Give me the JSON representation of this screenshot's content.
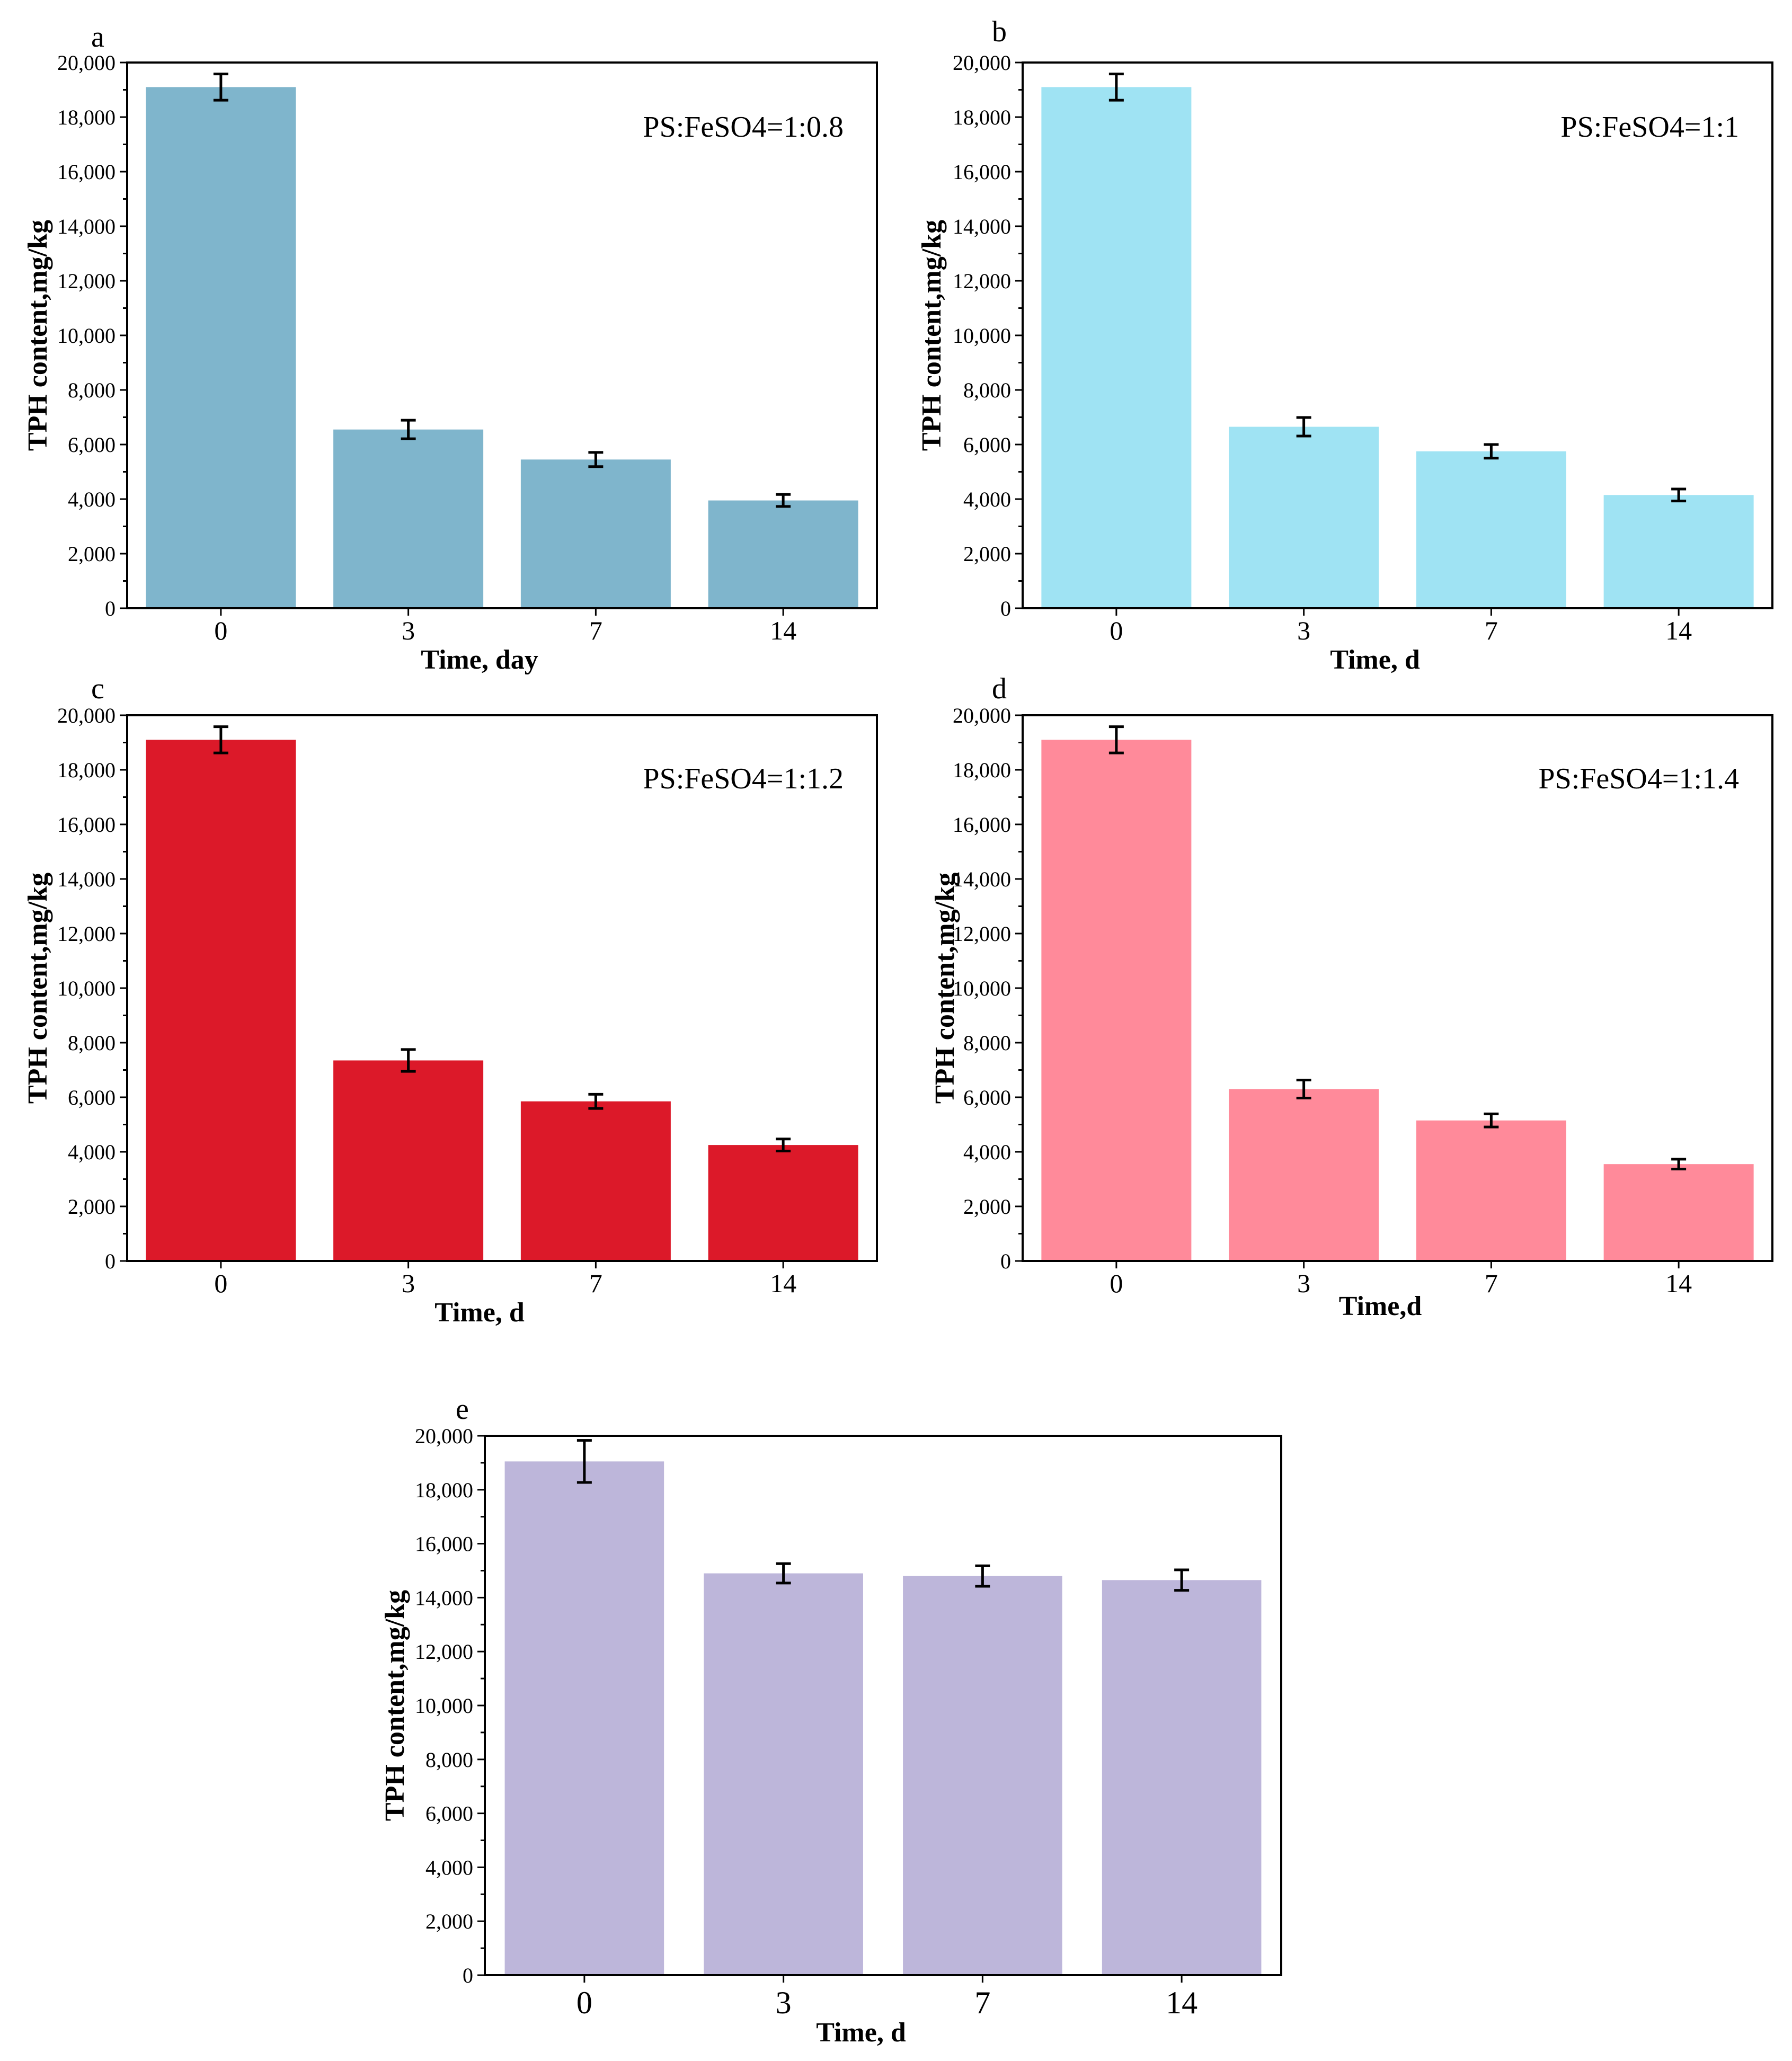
{
  "chart_data": [
    {
      "type": "bar",
      "panel": "a",
      "annotation": "PS:FeSO4=1:0.8",
      "categories": [
        "0",
        "3",
        "7",
        "14"
      ],
      "values": [
        19100,
        6550,
        5450,
        3950
      ],
      "error": [
        480,
        340,
        260,
        220
      ],
      "xlabel": "Time, day",
      "ylabel": "TPH content,mg/kg",
      "ylim": [
        0,
        20000
      ],
      "yticks": [
        "0",
        "2,000",
        "4,000",
        "6,000",
        "8,000",
        "10,000",
        "12,000",
        "14,000",
        "16,000",
        "18,000",
        "20,000"
      ],
      "color": "#7fb5cc"
    },
    {
      "type": "bar",
      "panel": "b",
      "annotation": "PS:FeSO4=1:1",
      "categories": [
        "0",
        "3",
        "7",
        "14"
      ],
      "values": [
        19100,
        6650,
        5750,
        4150
      ],
      "error": [
        480,
        340,
        250,
        220
      ],
      "xlabel": "Time, d",
      "ylabel": "TPH content,mg/kg",
      "ylim": [
        0,
        20000
      ],
      "yticks": [
        "0",
        "2,000",
        "4,000",
        "6,000",
        "8,000",
        "10,000",
        "12,000",
        "14,000",
        "16,000",
        "18,000",
        "20,000"
      ],
      "color": "#9fe3f3"
    },
    {
      "type": "bar",
      "panel": "c",
      "annotation": "PS:FeSO4=1:1.2",
      "categories": [
        "0",
        "3",
        "7",
        "14"
      ],
      "values": [
        19100,
        7350,
        5850,
        4250
      ],
      "error": [
        480,
        400,
        260,
        220
      ],
      "xlabel": "Time, d",
      "ylabel": "TPH content,mg/kg",
      "ylim": [
        0,
        20000
      ],
      "yticks": [
        "0",
        "2,000",
        "4,000",
        "6,000",
        "8,000",
        "10,000",
        "12,000",
        "14,000",
        "16,000",
        "18,000",
        "20,000"
      ],
      "color": "#dc1929"
    },
    {
      "type": "bar",
      "panel": "d",
      "annotation": "PS:FeSO4=1:1.4",
      "categories": [
        "0",
        "3",
        "7",
        "14"
      ],
      "values": [
        19100,
        6300,
        5150,
        3550
      ],
      "error": [
        480,
        330,
        240,
        180
      ],
      "xlabel": "Time,d",
      "ylabel": "TPH content,mg/kg",
      "ylim": [
        0,
        20000
      ],
      "yticks": [
        "0",
        "2,000",
        "4,000",
        "6,000",
        "8,000",
        "10,000",
        "12,000",
        "14,000",
        "16,000",
        "18,000",
        "20,000"
      ],
      "color": "#ff8a9a"
    },
    {
      "type": "bar",
      "panel": "e",
      "annotation": "",
      "categories": [
        "0",
        "3",
        "7",
        "14"
      ],
      "values": [
        19050,
        14900,
        14800,
        14650
      ],
      "error": [
        780,
        360,
        380,
        380
      ],
      "xlabel": "Time, d",
      "ylabel": "TPH content,mg/kg",
      "ylim": [
        0,
        20000
      ],
      "yticks": [
        "0",
        "2,000",
        "4,000",
        "6,000",
        "8,000",
        "10,000",
        "12,000",
        "14,000",
        "16,000",
        "18,000",
        "20,000"
      ],
      "color": "#bdb6da"
    }
  ]
}
